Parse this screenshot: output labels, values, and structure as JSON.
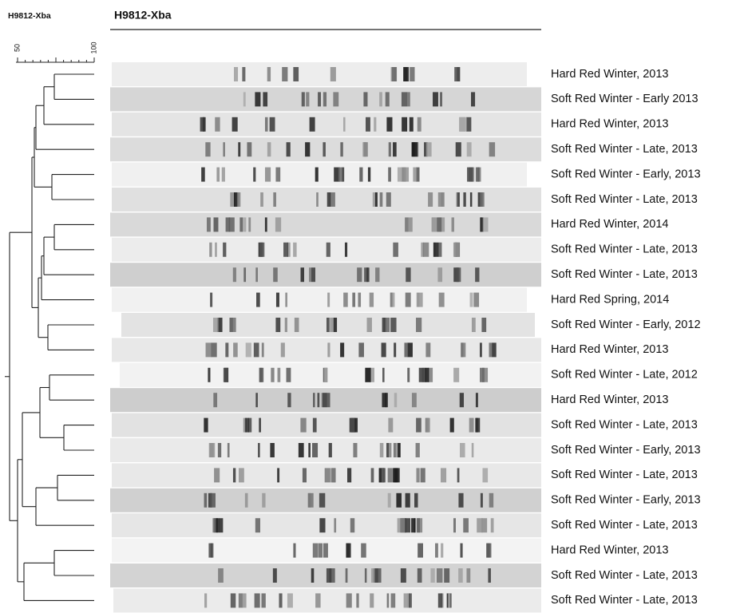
{
  "side_title": "H9812-Xba",
  "header": {
    "title": "H9812-Xba"
  },
  "scale": {
    "labels": [
      "50",
      "100"
    ]
  },
  "rows": [
    "Hard Red Winter, 2013",
    "Soft Red Winter - Early 2013",
    "Hard Red Winter, 2013",
    "Soft Red Winter - Late, 2013",
    "Soft Red Winter - Early, 2013",
    "Soft Red Winter - Late, 2013",
    "Hard Red Winter, 2014",
    "Soft Red Winter - Late, 2013",
    "Soft Red Winter - Late, 2013",
    "Hard Red Spring, 2014",
    "Soft Red Winter - Early, 2012",
    "Hard Red Winter, 2013",
    "Soft Red Winter - Late, 2012",
    "Hard Red Winter, 2013",
    "Soft Red Winter - Late, 2013",
    "Soft Red Winter - Early, 2013",
    "Soft Red Winter - Late, 2013",
    "Soft Red Winter - Early, 2013",
    "Soft Red Winter - Late, 2013",
    "Hard Red Winter, 2013",
    "Soft Red Winter - Late, 2013",
    "Soft Red Winter - Late, 2013"
  ]
}
